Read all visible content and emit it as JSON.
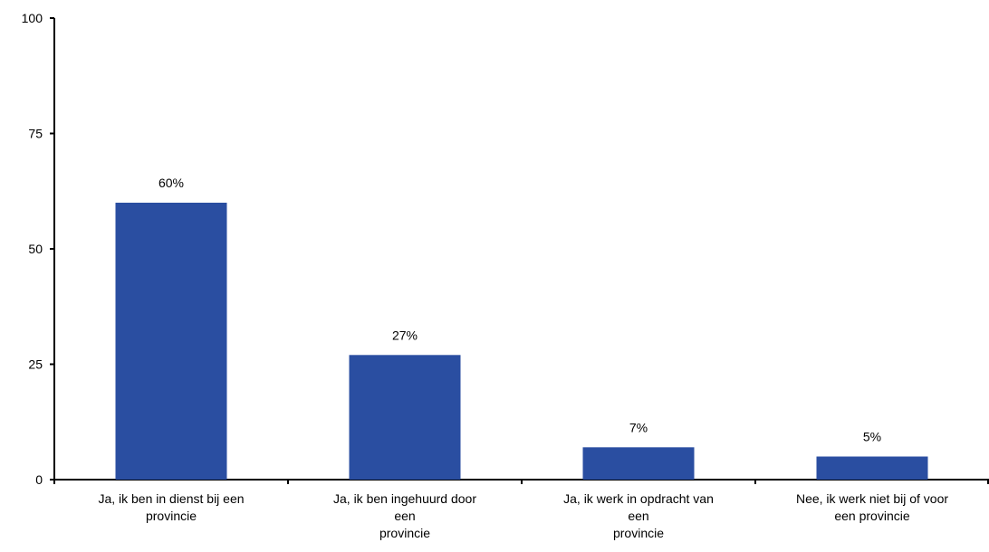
{
  "chart_data": {
    "type": "bar",
    "title": "",
    "xlabel": "",
    "ylabel": "",
    "ylim": [
      0,
      100
    ],
    "yticks": [
      0,
      25,
      50,
      75,
      100
    ],
    "grid": false,
    "bar_color": "#2a4ea1",
    "axis_color": "#000000",
    "categories": [
      [
        "Ja, ik ben in dienst bij een",
        "provincie"
      ],
      [
        "Ja, ik ben ingehuurd door",
        "een",
        "provincie"
      ],
      [
        "Ja, ik werk in opdracht van",
        "een",
        "provincie"
      ],
      [
        "Nee, ik werk niet bij of voor",
        "een provincie"
      ]
    ],
    "values": [
      60,
      27,
      7,
      5
    ],
    "data_labels": [
      "60%",
      "27%",
      "7%",
      "5%"
    ]
  }
}
